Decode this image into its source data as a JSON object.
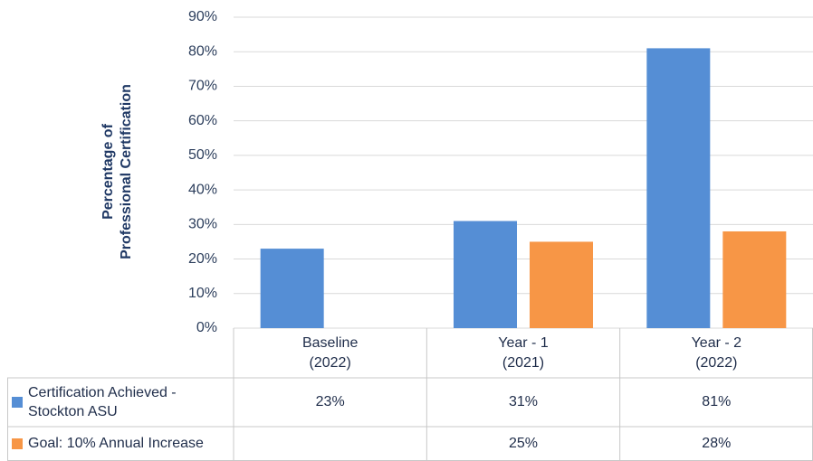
{
  "chart_data": {
    "type": "bar",
    "y_label": "Percentage of\nProfessional Certification",
    "categories": [
      "Baseline\n(2022)",
      "Year - 1\n(2021)",
      "Year - 2\n(2022)"
    ],
    "series": [
      {
        "name": "Certification Achieved - Stockton ASU",
        "color": "#558ed5",
        "values": [
          23,
          31,
          81
        ],
        "value_labels": [
          "23%",
          "31%",
          "81%"
        ]
      },
      {
        "name": "Goal: 10% Annual Increase",
        "color": "#f79646",
        "values": [
          null,
          25,
          28
        ],
        "value_labels": [
          null,
          "25%",
          "28%"
        ]
      }
    ],
    "ylim": [
      0,
      90
    ],
    "yticks": [
      {
        "value": 0,
        "label": "0%"
      },
      {
        "value": 10,
        "label": "10%"
      },
      {
        "value": 20,
        "label": "20%"
      },
      {
        "value": 30,
        "label": "30%"
      },
      {
        "value": 40,
        "label": "40%"
      },
      {
        "value": 50,
        "label": "50%"
      },
      {
        "value": 60,
        "label": "60%"
      },
      {
        "value": 70,
        "label": "70%"
      },
      {
        "value": 80,
        "label": "80%"
      },
      {
        "value": 90,
        "label": "90%"
      }
    ],
    "grid": true
  }
}
